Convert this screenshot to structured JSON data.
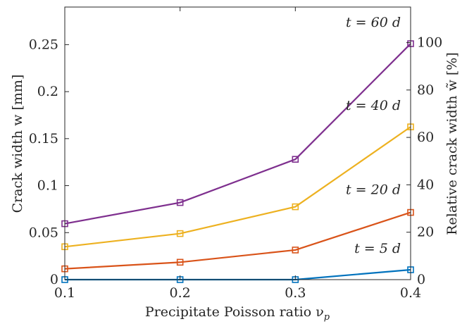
{
  "chart_data": {
    "type": "line",
    "x": [
      0.1,
      0.2,
      0.3,
      0.4
    ],
    "xlim": [
      0.1,
      0.4
    ],
    "ylim": [
      0,
      0.29
    ],
    "ylim_right": [
      0,
      115
    ],
    "xticks": [
      "0.1",
      "0.2",
      "0.3",
      "0.4"
    ],
    "yticks": [
      "0",
      "0.05",
      "0.1",
      "0.15",
      "0.2",
      "0.25"
    ],
    "yticks_right": [
      "0",
      "20",
      "40",
      "60",
      "80",
      "100"
    ],
    "xlabel": "Precipitate Poisson ratio ν",
    "xlabel_sub": "p",
    "ylabel": "Crack width w [mm]",
    "ylabel_right": "Relative crack width w̃ [%]",
    "grid": false,
    "marker": "square",
    "series": [
      {
        "name": "t = 5 d",
        "color": "#0072BD",
        "values": [
          0,
          0,
          0,
          0.0105
        ]
      },
      {
        "name": "t = 20 d",
        "color": "#D95319",
        "values": [
          0.0115,
          0.0185,
          0.0315,
          0.0715
        ]
      },
      {
        "name": "t = 40 d",
        "color": "#EDB120",
        "values": [
          0.035,
          0.049,
          0.0775,
          0.1625
        ]
      },
      {
        "name": "t = 60 d",
        "color": "#7E2F8E",
        "values": [
          0.0595,
          0.082,
          0.128,
          0.251
        ]
      }
    ]
  }
}
